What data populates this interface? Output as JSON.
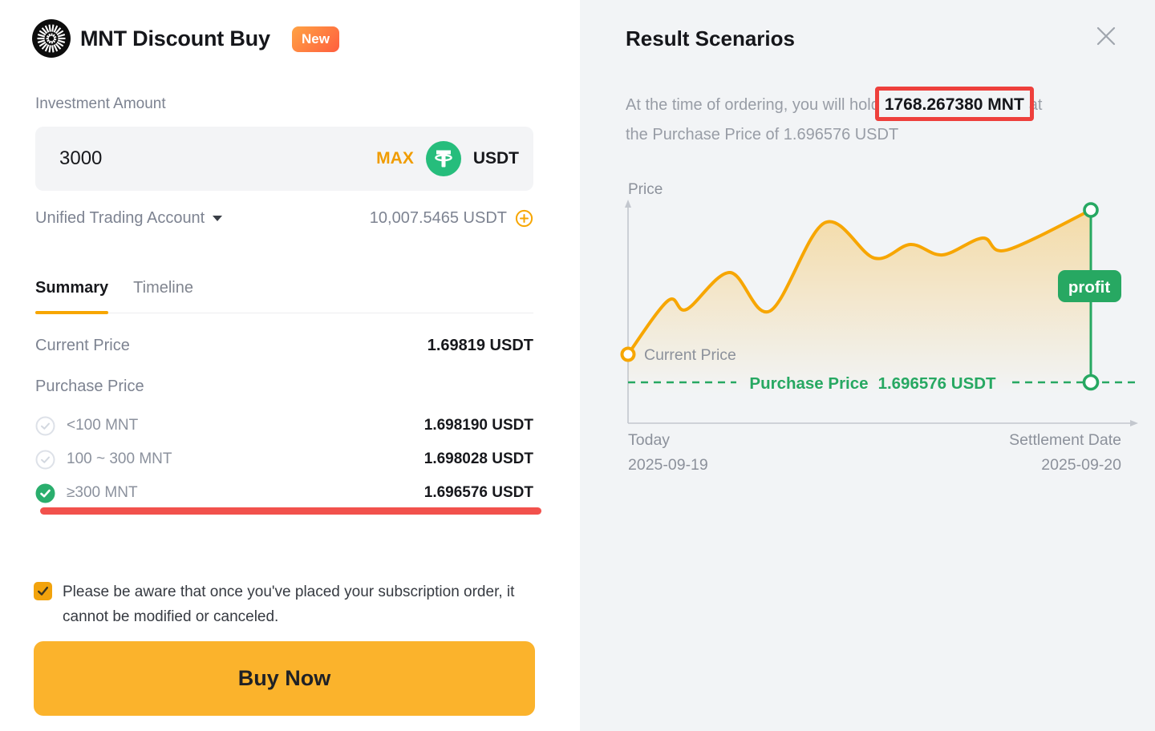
{
  "left_panel": {
    "title": "MNT Discount Buy",
    "badge_new": "New",
    "investment": {
      "label": "Investment Amount",
      "value": "3000",
      "max_label": "MAX",
      "currency": "USDT"
    },
    "account": {
      "name": "Unified Trading Account",
      "balance": "10,007.5465 USDT"
    },
    "tabs": [
      {
        "label": "Summary"
      },
      {
        "label": "Timeline"
      }
    ],
    "summary": {
      "current_price_label": "Current Price",
      "current_price_value": "1.69819 USDT",
      "purchase_price_label": "Purchase Price",
      "tiers": [
        {
          "range": "<100 MNT",
          "price": "1.698190 USDT",
          "selected": false
        },
        {
          "range": "100 ~ 300 MNT",
          "price": "1.698028 USDT",
          "selected": false
        },
        {
          "range": "≥300 MNT",
          "price": "1.696576 USDT",
          "selected": true
        }
      ]
    },
    "disclaimer": "Please be aware that once you've placed your subscription order, it cannot be modified or canceled.",
    "buy_button_label": "Buy Now"
  },
  "right_panel": {
    "title": "Result Scenarios",
    "description": {
      "line1_before": "At the time of ordering, you will hold",
      "highlight_value": "1768.267380 MNT",
      "line1_after": "at",
      "line2": "the Purchase Price of 1.696576 USDT"
    },
    "chart": {
      "type": "area",
      "ylabel": "Price",
      "current_price_label": "Current Price",
      "purchase_price_label": "Purchase Price",
      "purchase_price_value": "1.696576 USDT",
      "profit_badge": "profit",
      "x_axis_start": {
        "label": "Today",
        "date": "2025-09-19"
      },
      "x_axis_end": {
        "label": "Settlement Date",
        "date": "2025-09-20"
      },
      "curve_points": [
        [
          13,
          222
        ],
        [
          63,
          155
        ],
        [
          86,
          166
        ],
        [
          140,
          120
        ],
        [
          190,
          168
        ],
        [
          258,
          58
        ],
        [
          320,
          102
        ],
        [
          365,
          85
        ],
        [
          405,
          98
        ],
        [
          455,
          77
        ],
        [
          485,
          92
        ],
        [
          590,
          42
        ]
      ]
    }
  },
  "colors": {
    "accent_yellow": "#f7a600",
    "buy_button_yellow": "#fbb32c",
    "new_badge_gradient_start": "#ffa344",
    "new_badge_gradient_end": "#ff5e3e",
    "chart_green": "#27a862",
    "check_green": "#2aae6d",
    "tether_green": "#26bd7c",
    "annotation_red": "#ee403c",
    "right_panel_bg": "#f2f4f6"
  }
}
